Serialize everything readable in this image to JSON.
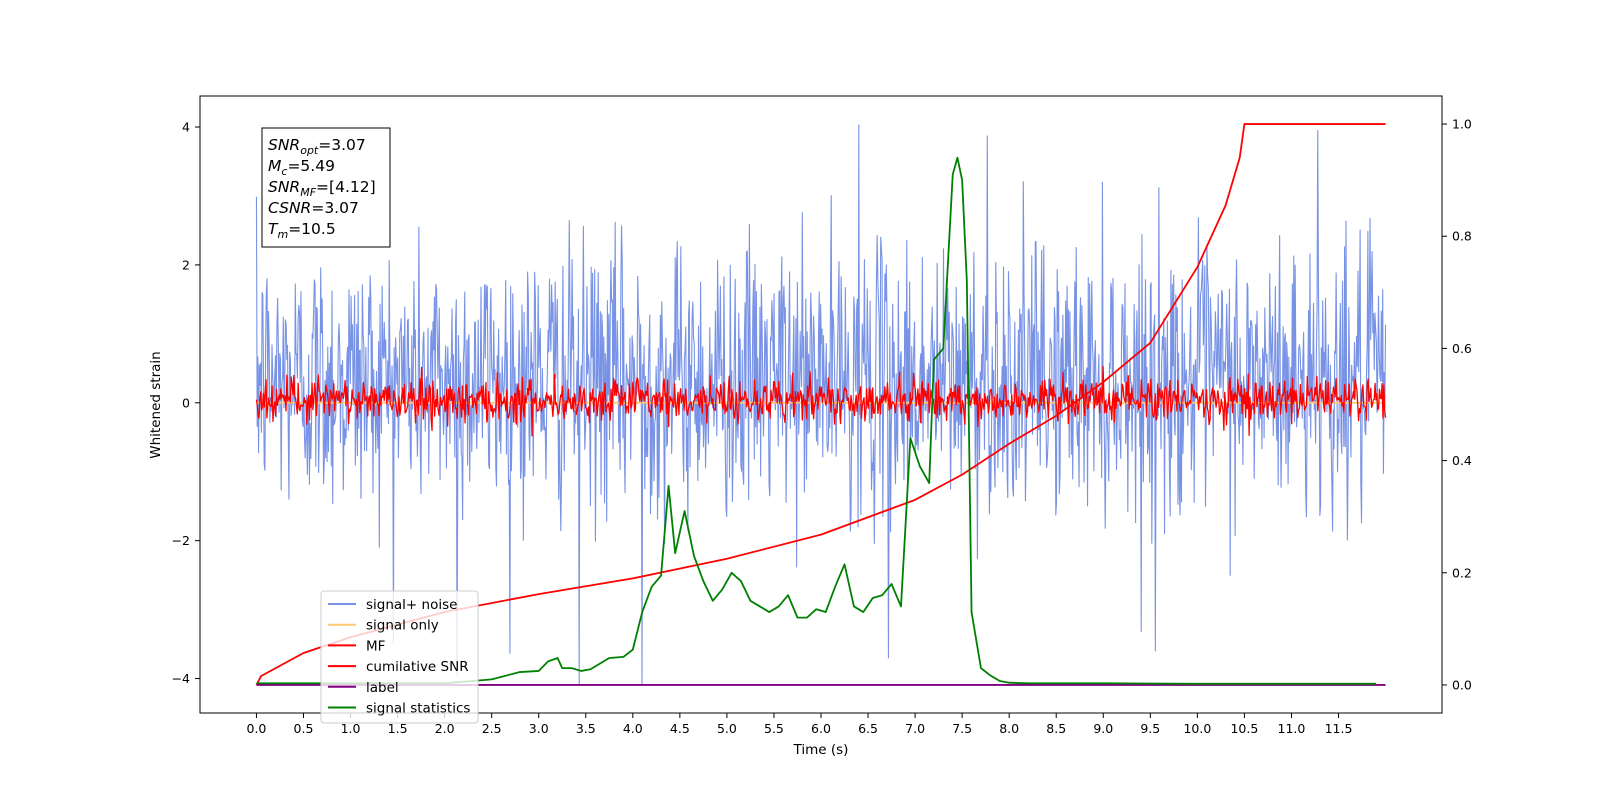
{
  "chart_data": {
    "type": "line",
    "xlabel": "Time (s)",
    "ylabel": "Whitened strain",
    "xlim": [
      -0.6,
      12.6
    ],
    "ylim_left": [
      -4.5,
      4.45
    ],
    "ylim_right": [
      -0.05,
      1.05
    ],
    "x_ticks": [
      0.0,
      0.5,
      1.0,
      1.5,
      2.0,
      2.5,
      3.0,
      3.5,
      4.0,
      4.5,
      5.0,
      5.5,
      6.0,
      6.5,
      7.0,
      7.5,
      8.0,
      8.5,
      9.0,
      9.5,
      10.0,
      10.5,
      11.0,
      11.5
    ],
    "x_tick_labels": [
      "0.0",
      "0.5",
      "1.0",
      "1.5",
      "2.0",
      "2.5",
      "3.0",
      "3.5",
      "4.0",
      "4.5",
      "5.0",
      "5.5",
      "6.0",
      "6.5",
      "7.0",
      "7.5",
      "8.0",
      "8.5",
      "9.0",
      "9.5",
      "10.0",
      "10.5",
      "11.0",
      "11.5"
    ],
    "y_ticks_left": [
      -4,
      -2,
      0,
      2,
      4
    ],
    "y_tick_labels_left": [
      "−4",
      "−2",
      "0",
      "2",
      "4"
    ],
    "y_ticks_right": [
      0.0,
      0.2,
      0.4,
      0.6,
      0.8,
      1.0
    ],
    "y_tick_labels_right": [
      "0.0",
      "0.2",
      "0.4",
      "0.6",
      "0.8",
      "1.0"
    ],
    "grid": false,
    "legend_position": "lower-left",
    "stats_box": {
      "lines": [
        {
          "main": "SNR",
          "sub": "opt",
          "value": "=3.07"
        },
        {
          "main": "M",
          "sub": "c",
          "value": "=5.49"
        },
        {
          "main": "SNR",
          "sub": "MF",
          "value": "=[4.12]"
        },
        {
          "main": "CSNR",
          "sub": "",
          "value": "=3.07"
        },
        {
          "main": "T",
          "sub": "m",
          "value": "=10.5"
        }
      ]
    },
    "series": [
      {
        "name": "signal+ noise",
        "axis": "left",
        "color": "#7893e6",
        "style": "noise",
        "x_range": [
          0.0,
          12.0
        ],
        "typical_range": [
          -1.7,
          2.4
        ],
        "extremes": [
          -4.1,
          4.03
        ],
        "peaks": [
          {
            "x": 6.4,
            "y": 4.03
          },
          {
            "x": 7.77,
            "y": 3.87
          },
          {
            "x": 11.28,
            "y": 3.95
          },
          {
            "x": 3.43,
            "y": -4.15
          },
          {
            "x": 4.1,
            "y": -4.1
          },
          {
            "x": 6.72,
            "y": -3.7
          },
          {
            "x": 2.13,
            "y": -3.95
          },
          {
            "x": 9.55,
            "y": -3.6
          }
        ]
      },
      {
        "name": "signal only",
        "axis": "left",
        "color": "#ffc870",
        "style": "flat",
        "x_range": [
          0.0,
          12.0
        ],
        "value": 0.0
      },
      {
        "name": "MF",
        "axis": "left",
        "color": "#ff0000",
        "style": "noise",
        "x_range": [
          0.0,
          12.0
        ],
        "typical_range": [
          -0.45,
          0.55
        ],
        "extremes": [
          -0.5,
          1.0
        ]
      },
      {
        "name": "cumilative SNR",
        "axis": "right",
        "color": "#ff0000",
        "style": "line",
        "x": [
          0.0,
          0.05,
          0.5,
          1.0,
          2.0,
          3.0,
          4.0,
          5.0,
          6.0,
          7.0,
          7.5,
          8.0,
          8.5,
          9.0,
          9.5,
          10.0,
          10.3,
          10.45,
          10.5,
          12.0
        ],
        "values": [
          0.0,
          0.016,
          0.057,
          0.085,
          0.13,
          0.162,
          0.19,
          0.225,
          0.268,
          0.33,
          0.375,
          0.43,
          0.48,
          0.54,
          0.61,
          0.745,
          0.855,
          0.94,
          1.0,
          1.0
        ]
      },
      {
        "name": "label",
        "axis": "right",
        "color": "#800080",
        "style": "flat",
        "x_range": [
          0.0,
          12.0
        ],
        "value": 0.0
      },
      {
        "name": "signal statistics",
        "axis": "right",
        "color": "#008000",
        "style": "line",
        "x": [
          0.0,
          1.0,
          2.0,
          2.3,
          2.5,
          2.8,
          3.0,
          3.1,
          3.2,
          3.25,
          3.35,
          3.45,
          3.55,
          3.65,
          3.75,
          3.9,
          4.0,
          4.1,
          4.2,
          4.3,
          4.38,
          4.45,
          4.55,
          4.65,
          4.75,
          4.85,
          4.95,
          5.05,
          5.15,
          5.25,
          5.35,
          5.45,
          5.55,
          5.65,
          5.75,
          5.85,
          5.95,
          6.05,
          6.15,
          6.25,
          6.35,
          6.45,
          6.55,
          6.65,
          6.75,
          6.85,
          6.95,
          7.05,
          7.15,
          7.2,
          7.3,
          7.4,
          7.45,
          7.5,
          7.55,
          7.6,
          7.7,
          7.8,
          7.9,
          8.0,
          8.2,
          9.0,
          10.0,
          11.0,
          11.9
        ],
        "values": [
          0.003,
          0.003,
          0.003,
          0.007,
          0.01,
          0.023,
          0.025,
          0.042,
          0.048,
          0.03,
          0.03,
          0.025,
          0.028,
          0.038,
          0.048,
          0.05,
          0.063,
          0.13,
          0.175,
          0.195,
          0.355,
          0.235,
          0.31,
          0.23,
          0.185,
          0.15,
          0.17,
          0.2,
          0.185,
          0.15,
          0.14,
          0.13,
          0.14,
          0.16,
          0.12,
          0.12,
          0.135,
          0.13,
          0.175,
          0.215,
          0.14,
          0.13,
          0.155,
          0.16,
          0.18,
          0.14,
          0.44,
          0.39,
          0.36,
          0.58,
          0.6,
          0.91,
          0.94,
          0.9,
          0.72,
          0.13,
          0.03,
          0.017,
          0.007,
          0.004,
          0.003,
          0.003,
          0.002,
          0.002,
          0.002
        ]
      }
    ]
  }
}
